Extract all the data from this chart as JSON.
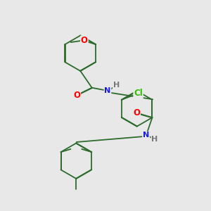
{
  "background_color": "#e8e8e8",
  "bond_color": "#2d6b2d",
  "atom_colors": {
    "O": "#ff0000",
    "N": "#1a1aee",
    "Cl": "#33bb00",
    "H_text": "#777777"
  },
  "figsize": [
    3.0,
    3.0
  ],
  "dpi": 100,
  "lw": 1.3,
  "dbl_off": 0.012,
  "fs": 7.0
}
